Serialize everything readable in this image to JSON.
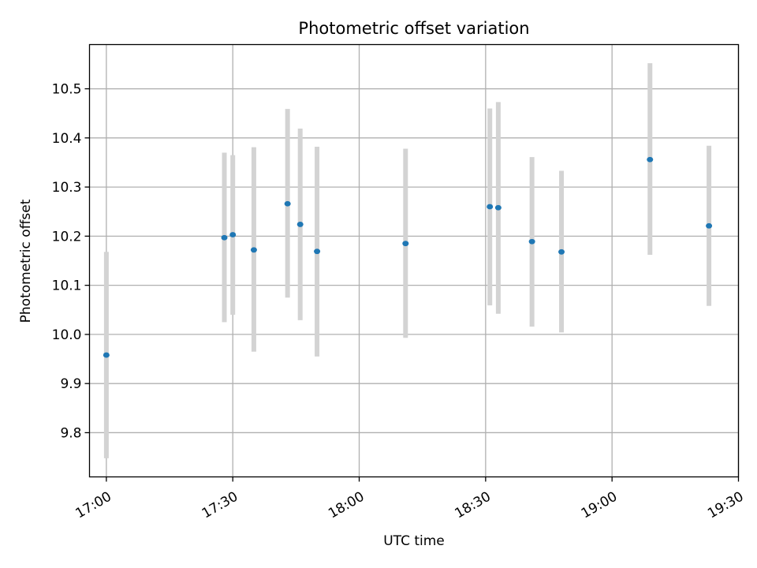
{
  "chart_data": {
    "type": "scatter",
    "title": "Photometric offset variation",
    "xlabel": "UTC time",
    "ylabel": "Photometric offset",
    "x_unit": "HH:MM UTC",
    "xlim": [
      "16:56",
      "19:30"
    ],
    "ylim": [
      9.71,
      10.59
    ],
    "grid": true,
    "x_ticks": [
      "17:00",
      "17:30",
      "18:00",
      "18:30",
      "19:00",
      "19:30"
    ],
    "y_ticks": [
      "9.8",
      "9.9",
      "10.0",
      "10.1",
      "10.2",
      "10.3",
      "10.4",
      "10.5"
    ],
    "series": [
      {
        "marker_color": "#1f77b4",
        "errorbar_color": "#d3d3d3",
        "points": [
          {
            "x": "17:00",
            "y": 9.958,
            "ylow": 9.748,
            "yhigh": 10.168
          },
          {
            "x": "17:28",
            "y": 10.197,
            "ylow": 10.025,
            "yhigh": 10.37
          },
          {
            "x": "17:30",
            "y": 10.203,
            "ylow": 10.04,
            "yhigh": 10.365
          },
          {
            "x": "17:35",
            "y": 10.172,
            "ylow": 9.965,
            "yhigh": 10.381
          },
          {
            "x": "17:43",
            "y": 10.266,
            "ylow": 10.075,
            "yhigh": 10.459
          },
          {
            "x": "17:46",
            "y": 10.224,
            "ylow": 10.029,
            "yhigh": 10.419
          },
          {
            "x": "17:50",
            "y": 10.169,
            "ylow": 9.955,
            "yhigh": 10.382
          },
          {
            "x": "18:11",
            "y": 10.185,
            "ylow": 9.993,
            "yhigh": 10.378
          },
          {
            "x": "18:31",
            "y": 10.26,
            "ylow": 10.059,
            "yhigh": 10.46
          },
          {
            "x": "18:33",
            "y": 10.258,
            "ylow": 10.042,
            "yhigh": 10.473
          },
          {
            "x": "18:41",
            "y": 10.189,
            "ylow": 10.016,
            "yhigh": 10.361
          },
          {
            "x": "18:48",
            "y": 10.168,
            "ylow": 10.004,
            "yhigh": 10.333
          },
          {
            "x": "19:09",
            "y": 10.356,
            "ylow": 10.162,
            "yhigh": 10.552
          },
          {
            "x": "19:23",
            "y": 10.221,
            "ylow": 10.058,
            "yhigh": 10.384
          }
        ]
      }
    ]
  }
}
